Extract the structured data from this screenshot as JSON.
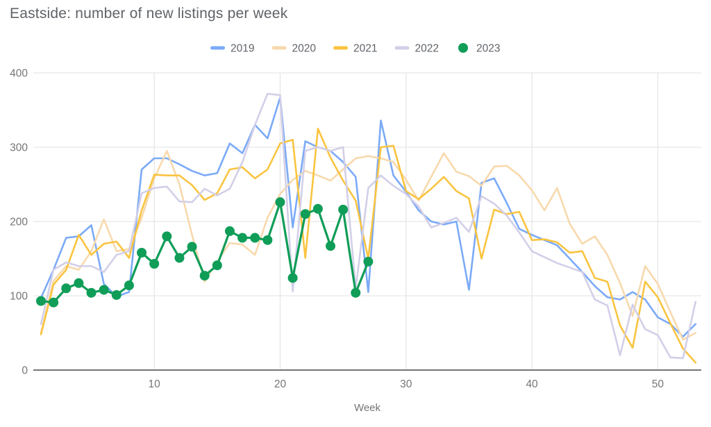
{
  "title": "Eastside: number of new listings per week",
  "x_axis": {
    "label": "Week",
    "ticks": [
      "10",
      "20",
      "30",
      "40",
      "50"
    ],
    "tick_weeks": [
      10,
      20,
      30,
      40,
      50
    ]
  },
  "y_axis": {
    "ticks": [
      "0",
      "100",
      "200",
      "300",
      "400"
    ],
    "tick_values": [
      0,
      100,
      200,
      300,
      400
    ],
    "max": 400
  },
  "legend": {
    "items": [
      "2019",
      "2020",
      "2021",
      "2022",
      "2023"
    ]
  },
  "colors": {
    "series_2019": "#7BAAF7",
    "series_2020": "#F7D9AC",
    "series_2021": "#F9C440",
    "series_2022": "#D2CFE8",
    "series_2023": "#0F9D58",
    "grid": "#e6e6e6",
    "baseline": "#757575",
    "tick_text": "#757575",
    "title_text": "#5f6368",
    "legend_text": "#5f6368"
  },
  "chart_data": {
    "type": "line",
    "title": "Eastside: number of new listings per week",
    "xlabel": "Week",
    "ylabel": "",
    "xlim": [
      1,
      53
    ],
    "ylim": [
      0,
      400
    ],
    "grid": true,
    "legend_position": "top",
    "x_weeks": "1..53",
    "series": [
      {
        "name": "2019",
        "color": "#7BAAF7",
        "marker": false,
        "values": [
          97,
          135,
          178,
          180,
          195,
          116,
          99,
          105,
          270,
          285,
          285,
          277,
          268,
          262,
          265,
          305,
          292,
          330,
          312,
          367,
          192,
          308,
          300,
          295,
          280,
          260,
          105,
          336,
          262,
          240,
          215,
          200,
          196,
          200,
          108,
          252,
          258,
          225,
          190,
          182,
          175,
          168,
          150,
          132,
          113,
          98,
          95,
          105,
          95,
          71,
          62,
          45,
          62
        ]
      },
      {
        "name": "2020",
        "color": "#F7D9AC",
        "marker": false,
        "values": [
          50,
          120,
          140,
          135,
          160,
          203,
          160,
          163,
          205,
          258,
          295,
          250,
          182,
          119,
          146,
          171,
          169,
          155,
          205,
          237,
          256,
          268,
          262,
          255,
          270,
          285,
          288,
          285,
          280,
          256,
          228,
          260,
          292,
          267,
          261,
          248,
          274,
          275,
          262,
          242,
          215,
          245,
          197,
          170,
          180,
          155,
          117,
          73,
          140,
          116,
          78,
          41,
          50
        ]
      },
      {
        "name": "2021",
        "color": "#F9C440",
        "marker": false,
        "values": [
          48,
          115,
          135,
          182,
          155,
          170,
          173,
          151,
          215,
          263,
          262,
          262,
          249,
          229,
          238,
          270,
          273,
          258,
          270,
          305,
          310,
          151,
          325,
          286,
          255,
          228,
          150,
          300,
          302,
          241,
          230,
          244,
          260,
          241,
          231,
          150,
          216,
          210,
          213,
          175,
          176,
          172,
          158,
          160,
          124,
          119,
          60,
          30,
          119,
          98,
          63,
          29,
          10
        ]
      },
      {
        "name": "2022",
        "color": "#D2CFE8",
        "marker": false,
        "values": [
          62,
          135,
          145,
          140,
          140,
          132,
          155,
          160,
          238,
          245,
          247,
          227,
          226,
          244,
          235,
          244,
          280,
          330,
          372,
          370,
          106,
          295,
          300,
          295,
          300,
          110,
          245,
          262,
          248,
          237,
          220,
          192,
          198,
          205,
          186,
          234,
          224,
          208,
          185,
          160,
          152,
          144,
          138,
          132,
          95,
          87,
          20,
          88,
          55,
          47,
          17,
          16,
          92
        ]
      },
      {
        "name": "2023",
        "color": "#0F9D58",
        "marker": true,
        "values": [
          93,
          91,
          110,
          117,
          104,
          108,
          101,
          114,
          158,
          143,
          180,
          151,
          166,
          127,
          141,
          187,
          178,
          178,
          175,
          226,
          124,
          210,
          217,
          167,
          216,
          104,
          146
        ]
      }
    ]
  }
}
